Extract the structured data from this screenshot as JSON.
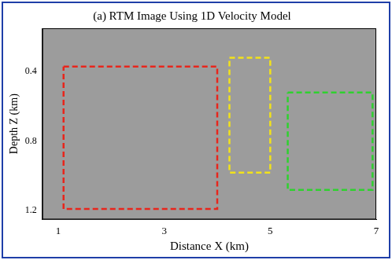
{
  "chart_data": {
    "type": "image",
    "title": "(a) RTM Image Using 1D Velocity Model",
    "x_label": "Distance X (km)",
    "y_label": "Depth Z (km)",
    "xlim": [
      0.7,
      7
    ],
    "xticks": [
      1,
      3,
      5,
      7
    ],
    "ylim": [
      0.15,
      1.25
    ],
    "yticks": [
      0.4,
      0.8,
      1.2
    ],
    "boxes": [
      {
        "color": "#e8261c",
        "x": [
          1.1,
          4.0
        ],
        "y": [
          0.37,
          1.19
        ]
      },
      {
        "color": "#f2e21a",
        "x": [
          4.23,
          5.0
        ],
        "y": [
          0.32,
          0.98
        ]
      },
      {
        "color": "#2fd12f",
        "x": [
          5.33,
          6.93
        ],
        "y": [
          0.52,
          1.08
        ]
      }
    ]
  }
}
